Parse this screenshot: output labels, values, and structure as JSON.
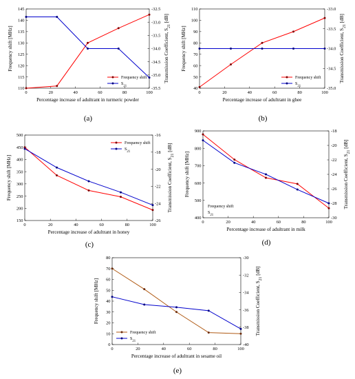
{
  "chart_data": [
    {
      "id": "a",
      "panel_label": "(a)",
      "type": "line",
      "xlabel": "Percentage increase of adultrant in turmeric powder",
      "ylabel_left": "Frequency shift [MHz]",
      "ylabel_right_prefix": "Transmission Coefficient, S",
      "ylabel_right_sub": "21",
      "ylabel_right_suffix": " [dB]",
      "xlim": [
        0,
        100
      ],
      "xticks": [
        0,
        20,
        40,
        60,
        80,
        100
      ],
      "ylim_left": [
        110,
        145
      ],
      "yticks_left": [
        110,
        115,
        120,
        125,
        130,
        135,
        140,
        145
      ],
      "ylim_right": [
        -35.5,
        -32.5
      ],
      "yticks_right": [
        "-32.5",
        "-33.0",
        "-33.5",
        "-34.0",
        "-34.5",
        "-35.0",
        "-35.5"
      ],
      "legend_position": "bottom-right",
      "series": [
        {
          "name": "Frequency shift",
          "axis": "left",
          "color": "#ff0000",
          "marker_color": "#800000",
          "x": [
            0,
            25,
            50,
            75,
            100
          ],
          "y": [
            110,
            111,
            130,
            136.5,
            142.5
          ]
        },
        {
          "name_prefix": "S",
          "name_sub": "21",
          "axis": "right",
          "color": "#0000cc",
          "marker_color": "#000080",
          "x": [
            0,
            25,
            50,
            75,
            100
          ],
          "y": [
            -32.8,
            -32.8,
            -34.0,
            -34.0,
            -35.1
          ]
        }
      ]
    },
    {
      "id": "b",
      "panel_label": "(b)",
      "type": "line",
      "xlabel": "Percentage increase of adultrant in ghee",
      "ylabel_left": "Frequency shift [MHz]",
      "ylabel_right_prefix": "Transmission Coefficient, S",
      "ylabel_right_sub": "21",
      "ylabel_right_suffix": " [dB]",
      "xlim": [
        0,
        100
      ],
      "xticks": [
        0,
        20,
        40,
        60,
        80,
        100
      ],
      "ylim_left": [
        40,
        110
      ],
      "yticks_left": [
        40,
        50,
        60,
        70,
        80,
        90,
        100,
        110
      ],
      "ylim_right": [
        -35.0,
        -33.0
      ],
      "yticks_right": [
        "-33.0",
        "-33.5",
        "-34.0",
        "-34.5",
        "-35.0"
      ],
      "legend_position": "bottom-right",
      "series": [
        {
          "name": "Frequency shift",
          "axis": "left",
          "color": "#ff0000",
          "marker_color": "#800000",
          "x": [
            0,
            25,
            50,
            75,
            100
          ],
          "y": [
            41,
            61,
            80,
            90,
            102
          ]
        },
        {
          "name_prefix": "S",
          "name_sub": "21",
          "axis": "right",
          "color": "#0000cc",
          "marker_color": "#000080",
          "x": [
            0,
            25,
            50,
            75,
            100
          ],
          "y": [
            -34.0,
            -34.0,
            -34.0,
            -34.0,
            -34.0
          ]
        }
      ]
    },
    {
      "id": "c",
      "panel_label": "(c)",
      "type": "line",
      "xlabel": "Percentage increase of adultrant in honey",
      "ylabel_left": "Frequency shift [MHz]",
      "ylabel_right_prefix": "Transmission Coefficient, S",
      "ylabel_right_sub": "21",
      "ylabel_right_suffix": " [dB]",
      "xlim": [
        0,
        100
      ],
      "xticks": [
        0,
        20,
        40,
        60,
        80,
        100
      ],
      "ylim_left": [
        150,
        500
      ],
      "yticks_left": [
        150,
        200,
        250,
        300,
        350,
        400,
        450,
        500
      ],
      "ylim_right": [
        -26,
        -16
      ],
      "yticks_right": [
        "-16",
        "-18",
        "-20",
        "-22",
        "-24",
        "-26"
      ],
      "legend_position": "top-right",
      "series": [
        {
          "name": "Frequency shift",
          "axis": "left",
          "color": "#ff0000",
          "marker_color": "#800000",
          "x": [
            0,
            25,
            50,
            75,
            100
          ],
          "y": [
            450,
            335,
            273,
            247,
            193
          ]
        },
        {
          "name_prefix": "S",
          "name_sub": "21",
          "axis": "right",
          "color": "#0000cc",
          "marker_color": "#000080",
          "x": [
            0,
            25,
            50,
            75,
            100
          ],
          "y": [
            -17.6,
            -19.8,
            -21.4,
            -22.7,
            -24.2
          ]
        }
      ]
    },
    {
      "id": "d",
      "panel_label": "(d)",
      "type": "line",
      "xlabel": "Percentage increase of adultrant in milk",
      "ylabel_left": "Frequency shift [MHz]",
      "ylabel_right_prefix": "Transmission Coefficient, S",
      "ylabel_right_sub": "21",
      "ylabel_right_suffix": " [dB]",
      "xlim": [
        0,
        100
      ],
      "xticks": [
        0,
        20,
        40,
        60,
        80,
        100
      ],
      "ylim_left": [
        400,
        900
      ],
      "yticks_left": [
        400,
        500,
        600,
        700,
        800,
        900
      ],
      "ylim_right": [
        -30,
        -18
      ],
      "yticks_right": [
        "-18",
        "-20",
        "-22",
        "-24",
        "-26",
        "-28",
        "-30"
      ],
      "legend_position": "bottom-left",
      "series": [
        {
          "name": "Frequency shift",
          "axis": "left",
          "color": "#ff0000",
          "marker_color": "#800000",
          "x": [
            0,
            25,
            50,
            75,
            100
          ],
          "y": [
            880,
            735,
            630,
            595,
            455
          ]
        },
        {
          "name_prefix": "S",
          "name_sub": "21",
          "axis": "right",
          "color": "#0000cc",
          "marker_color": "#000080",
          "x": [
            0,
            25,
            50,
            75,
            100
          ],
          "y": [
            -19.3,
            -22.4,
            -24.0,
            -26.1,
            -28.0
          ]
        }
      ]
    },
    {
      "id": "e",
      "panel_label": "(e)",
      "type": "line",
      "xlabel": "Percentage increase of adultrant in sesame oil",
      "ylabel_left": "Frequency shift [MHz]",
      "ylabel_right_prefix": "Transmission Coefficient, S",
      "ylabel_right_sub": "21",
      "ylabel_right_suffix": " [dB]",
      "xlim": [
        0,
        100
      ],
      "xticks": [
        0,
        20,
        40,
        60,
        80,
        100
      ],
      "ylim_left": [
        0,
        80
      ],
      "yticks_left": [
        0,
        10,
        20,
        30,
        40,
        50,
        60,
        70,
        80
      ],
      "ylim_right": [
        -40,
        -30
      ],
      "yticks_right": [
        "-30",
        "-32",
        "-34",
        "-36",
        "-38",
        "-40"
      ],
      "legend_position": "bottom-left",
      "series": [
        {
          "name": "Frequency shift",
          "axis": "left",
          "color": "#b05a14",
          "marker_color": "#6a2a0a",
          "x": [
            0,
            25,
            50,
            75,
            100
          ],
          "y": [
            70,
            51,
            30,
            11,
            10
          ]
        },
        {
          "name_prefix": "S",
          "name_sub": "21",
          "axis": "right",
          "color": "#0000cc",
          "marker_color": "#000080",
          "x": [
            0,
            25,
            50,
            75,
            100
          ],
          "y": [
            -34.5,
            -35.4,
            -35.7,
            -36.1,
            -38.2
          ]
        }
      ]
    }
  ]
}
